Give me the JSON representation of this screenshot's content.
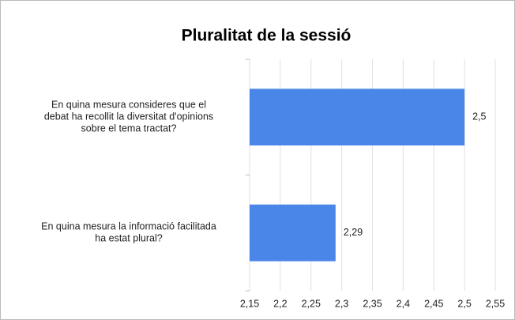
{
  "chart_data": {
    "type": "hbar",
    "title": "Pluralitat de la sessió",
    "categories": [
      "En quina mesura consideres que el\ndebat ha recollit la diversitat d'opinions\nsobre el tema tractat?",
      "En quina mesura la informació facilitada\nha estat plural?"
    ],
    "values": [
      2.5,
      2.29
    ],
    "value_labels": [
      "2,5",
      "2,29"
    ],
    "color": "#4a86e8",
    "xlim": [
      2.15,
      2.55
    ],
    "xticks": [
      {
        "value": 2.15,
        "label": "2,15"
      },
      {
        "value": 2.2,
        "label": "2,2"
      },
      {
        "value": 2.25,
        "label": "2,25"
      },
      {
        "value": 2.3,
        "label": "2,3"
      },
      {
        "value": 2.35,
        "label": "2,35"
      },
      {
        "value": 2.4,
        "label": "2,4"
      },
      {
        "value": 2.45,
        "label": "2,45"
      },
      {
        "value": 2.5,
        "label": "2,5"
      },
      {
        "value": 2.55,
        "label": "2,55"
      }
    ],
    "grid": true
  }
}
